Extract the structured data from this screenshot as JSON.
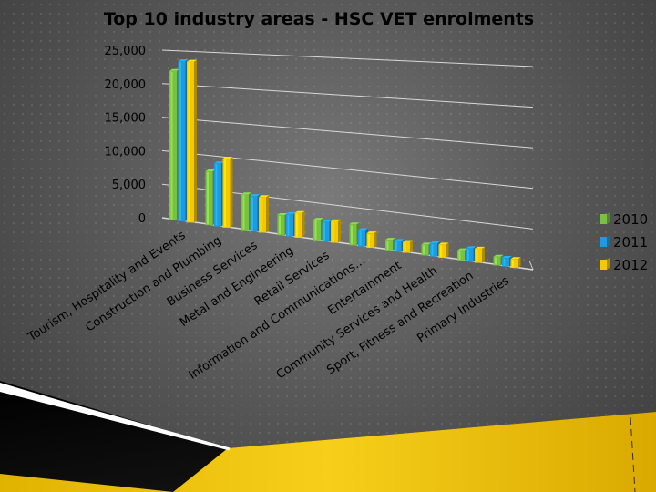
{
  "chart_data": {
    "type": "bar",
    "title": "Top 10 industry areas -  HSC VET enrolments",
    "xlabel": "",
    "ylabel": "",
    "ylim": [
      0,
      25000
    ],
    "y_ticks": [
      "25,000",
      "20,000",
      "15,000",
      "10,000",
      "5,000",
      "0"
    ],
    "categories": [
      "Tourism, Hospitality and Events",
      "Construction and Plumbing",
      "Business Services",
      "Metal and Engineering",
      "Retail Services",
      "Information and Communications…",
      "Entertainment",
      "Community Services and Health",
      "Sport, Fitness and Recreation",
      "Primary Industries"
    ],
    "series": [
      {
        "name": "2010",
        "color": "#7ac143",
        "values": [
          22000,
          7700,
          5000,
          2700,
          2700,
          2700,
          1300,
          1300,
          1200,
          1000
        ]
      },
      {
        "name": "2011",
        "color": "#1e9be0",
        "values": [
          23500,
          9000,
          4900,
          3000,
          2600,
          2100,
          1300,
          1600,
          1600,
          1000
        ]
      },
      {
        "name": "2012",
        "color": "#f5c800",
        "values": [
          23500,
          9800,
          4900,
          3300,
          2800,
          1800,
          1300,
          1600,
          1700,
          1000
        ]
      }
    ],
    "legend_position": "right",
    "grid": true
  }
}
